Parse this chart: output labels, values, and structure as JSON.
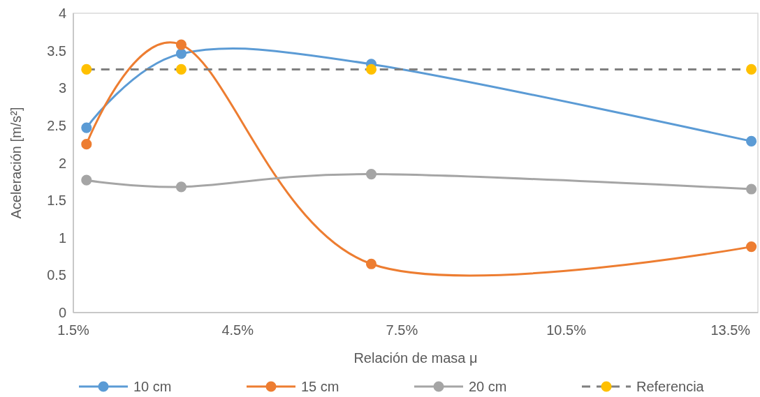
{
  "chart_data": {
    "type": "line",
    "xlabel": "Relación de masa μ",
    "ylabel": "Aceleración [m/s²]",
    "x": [
      1.74,
      3.47,
      6.94,
      13.88
    ],
    "xlim": [
      1.5,
      14
    ],
    "xticks": [
      {
        "value": 1.5,
        "label": "1.5%"
      },
      {
        "value": 4.5,
        "label": "4.5%"
      },
      {
        "value": 7.5,
        "label": "7.5%"
      },
      {
        "value": 10.5,
        "label": "10.5%"
      },
      {
        "value": 13.5,
        "label": "13.5%"
      }
    ],
    "ylim": [
      0,
      4
    ],
    "yticks": [
      0,
      0.5,
      1,
      1.5,
      2,
      2.5,
      3,
      3.5,
      4
    ],
    "marker": "circle",
    "legend": "bottom",
    "series": [
      {
        "name": "10 cm",
        "color": "#5b9bd5",
        "values": [
          2.47,
          3.46,
          3.32,
          2.29
        ]
      },
      {
        "name": "15 cm",
        "color": "#ed7d31",
        "values": [
          2.25,
          3.58,
          0.65,
          0.88
        ]
      },
      {
        "name": "20 cm",
        "color": "#a5a5a5",
        "values": [
          1.77,
          1.68,
          1.85,
          1.65
        ]
      },
      {
        "name": "Referencia",
        "color": "#7f7f7f",
        "colors": [
          "#ffc000",
          "#ffc000",
          "#ffc000",
          "#ffc000"
        ],
        "line_style": "dashed",
        "values": [
          3.25,
          3.25,
          3.25,
          3.25
        ]
      }
    ]
  }
}
